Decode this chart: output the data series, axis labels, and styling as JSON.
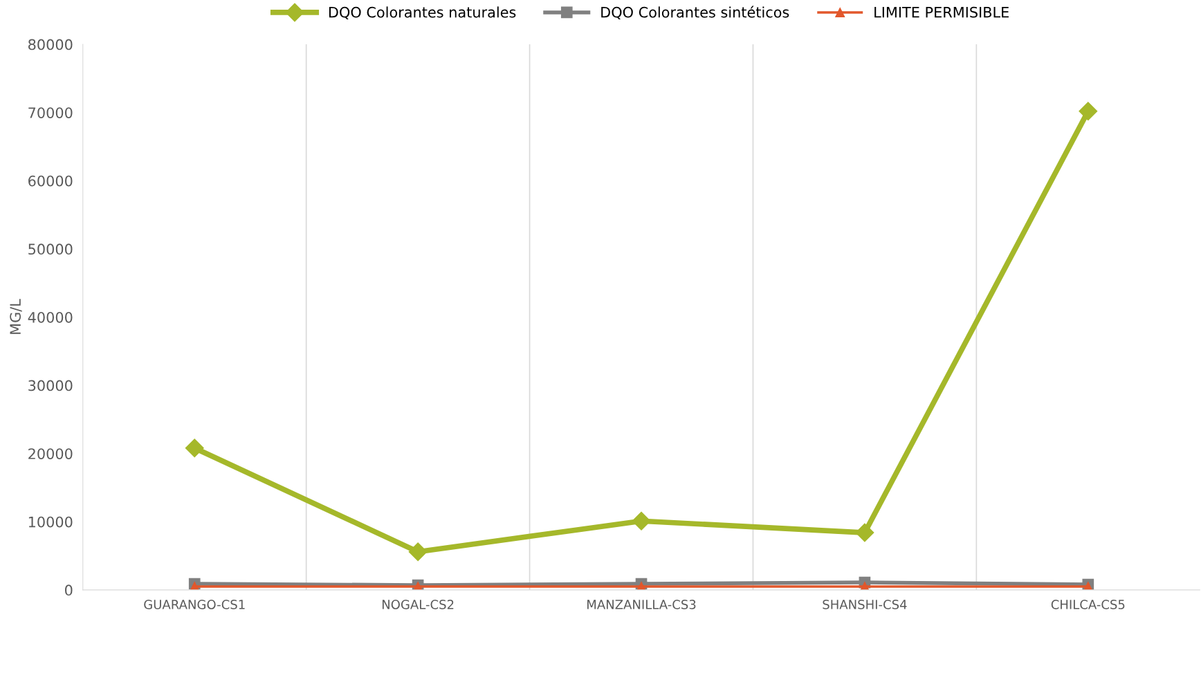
{
  "chart_data": {
    "type": "line",
    "ylabel": "MG/L",
    "categories": [
      "GUARANGO-CS1",
      "NOGAL-CS2",
      "MANZANILLA-CS3",
      "SHANSHI-CS4",
      "CHILCA-CS5"
    ],
    "series": [
      {
        "name": "DQO Colorantes naturales",
        "color": "#a5b82a",
        "marker": "diamond",
        "values": [
          20800,
          5600,
          10100,
          8400,
          70200
        ]
      },
      {
        "name": "DQO Colorantes sintéticos",
        "color": "#808080",
        "marker": "square",
        "values": [
          900,
          700,
          900,
          1100,
          800
        ]
      },
      {
        "name": "LIMITE PERMISIBLE",
        "color": "#e2572b",
        "marker": "triangle",
        "values": [
          500,
          500,
          500,
          500,
          500
        ]
      }
    ],
    "ylim": [
      0,
      80000
    ],
    "yticks": [
      0,
      10000,
      20000,
      30000,
      40000,
      50000,
      60000,
      70000,
      80000
    ],
    "grid": "x",
    "legend": "top",
    "line_style": "solid"
  }
}
